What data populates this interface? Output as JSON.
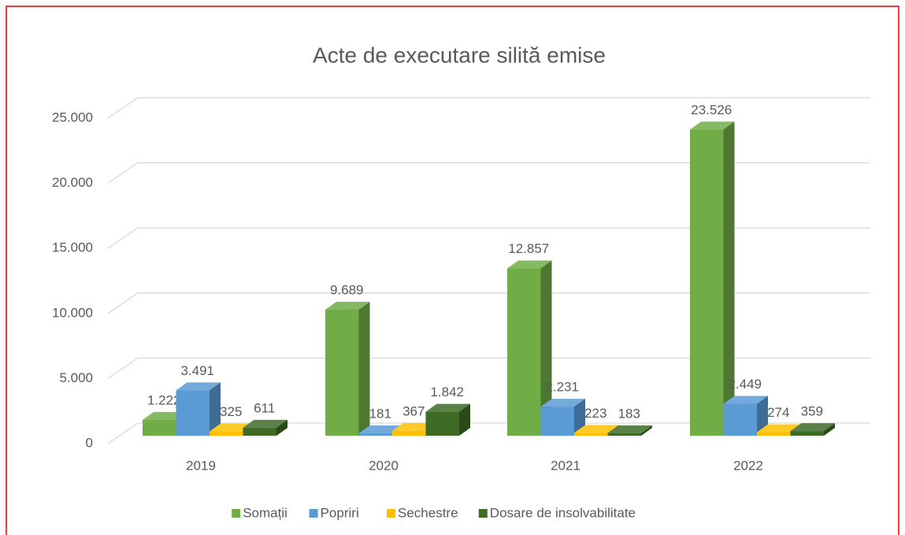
{
  "chart_data": {
    "type": "bar3d",
    "title": "Acte de executare silită emise",
    "categories": [
      "2019",
      "2020",
      "2021",
      "2022"
    ],
    "series": [
      {
        "name": "Somații",
        "color": "#70ad47",
        "values": [
          1222,
          9689,
          12857,
          23526
        ],
        "value_labels": [
          "1.222",
          "9.689",
          "12.857",
          "23.526"
        ]
      },
      {
        "name": "Popriri",
        "color": "#5b9bd5",
        "values": [
          3491,
          181,
          2231,
          2449
        ],
        "value_labels": [
          "3.491",
          "181",
          "2.231",
          "2.449"
        ]
      },
      {
        "name": "Sechestre",
        "color": "#ffc000",
        "values": [
          325,
          367,
          223,
          274
        ],
        "value_labels": [
          "325",
          "367",
          "223",
          "274"
        ]
      },
      {
        "name": "Dosare de insolvabilitate",
        "color": "#3e6b26",
        "values": [
          611,
          1842,
          183,
          359
        ],
        "value_labels": [
          "611",
          "1.842",
          "183",
          "359"
        ]
      }
    ],
    "ylim": [
      0,
      25000
    ],
    "yticks": [
      0,
      {
        "value": 5000,
        "label": "5.000"
      },
      {
        "value": 10000,
        "label": "10.000"
      },
      {
        "value": 15000,
        "label": "15.000"
      },
      {
        "value": 20000,
        "label": "20.000"
      },
      {
        "value": 25000,
        "label": "25.000"
      }
    ],
    "grid": true,
    "legend": "bottom"
  }
}
